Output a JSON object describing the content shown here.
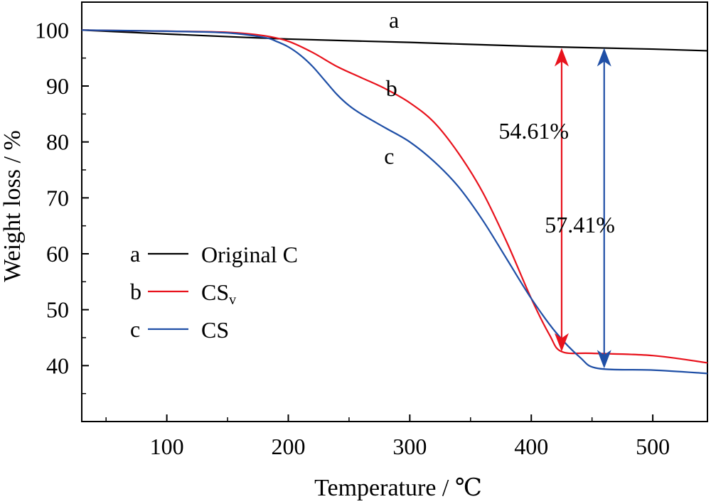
{
  "chart_data": {
    "type": "line",
    "xlabel": "Temperature / ℃",
    "ylabel": "Weight loss / %",
    "xlim": [
      30,
      545
    ],
    "ylim": [
      30,
      105
    ],
    "xticks": [
      100,
      200,
      300,
      400,
      500
    ],
    "yticks": [
      40,
      50,
      60,
      70,
      80,
      90,
      100
    ],
    "grid": false,
    "legend_position": "middle-left",
    "series": [
      {
        "name": "Original C",
        "legend_key": "a",
        "color": "#000000",
        "x": [
          30,
          100,
          200,
          300,
          400,
          500,
          545
        ],
        "y": [
          100.0,
          99.3,
          98.4,
          97.8,
          97.1,
          96.6,
          96.3
        ]
      },
      {
        "name": "CS",
        "name_subscript": "v",
        "legend_key": "b",
        "color": "#e8121c",
        "x": [
          30,
          100,
          150,
          180,
          200,
          220,
          240,
          260,
          280,
          300,
          320,
          340,
          360,
          380,
          400,
          415,
          425,
          450,
          500,
          545
        ],
        "y": [
          100.0,
          99.8,
          99.6,
          99.0,
          98.0,
          96.0,
          93.5,
          91.5,
          89.5,
          87.0,
          83.5,
          78.0,
          71.0,
          62.0,
          52.0,
          45.5,
          42.5,
          42.2,
          41.8,
          40.5
        ]
      },
      {
        "name": "CS",
        "legend_key": "c",
        "color": "#1f4fa6",
        "x": [
          30,
          100,
          150,
          180,
          190,
          200,
          210,
          220,
          230,
          240,
          250,
          260,
          280,
          300,
          320,
          340,
          360,
          380,
          400,
          420,
          440,
          455,
          500,
          545
        ],
        "y": [
          100.0,
          99.8,
          99.5,
          98.7,
          98.0,
          97.0,
          95.5,
          93.5,
          91.0,
          88.5,
          86.5,
          85.0,
          82.5,
          80.0,
          76.5,
          72.0,
          66.0,
          59.0,
          52.0,
          46.0,
          41.5,
          39.5,
          39.2,
          38.6
        ]
      }
    ],
    "curve_labels": [
      {
        "text": "a",
        "x": 287,
        "y": 100.4
      },
      {
        "text": "b",
        "x": 285,
        "y": 88.2
      },
      {
        "text": "c",
        "x": 283,
        "y": 76.1
      }
    ],
    "annotations": [
      {
        "label": "54.61%",
        "color": "#e8121c",
        "x": 425,
        "y_top": 96.8,
        "y_bottom": 42.5,
        "label_x": 402,
        "label_y": 80.6
      },
      {
        "label": "57.41%",
        "color": "#1f4fa6",
        "x": 460,
        "y_top": 96.8,
        "y_bottom": 39.5,
        "label_x": 440,
        "label_y": 63.8
      }
    ],
    "legend": [
      {
        "key": "a",
        "label": "Original C",
        "color": "#000000"
      },
      {
        "key": "b",
        "label": "CS",
        "sub": "v",
        "color": "#e8121c"
      },
      {
        "key": "c",
        "label": "CS",
        "color": "#1f4fa6"
      }
    ]
  }
}
